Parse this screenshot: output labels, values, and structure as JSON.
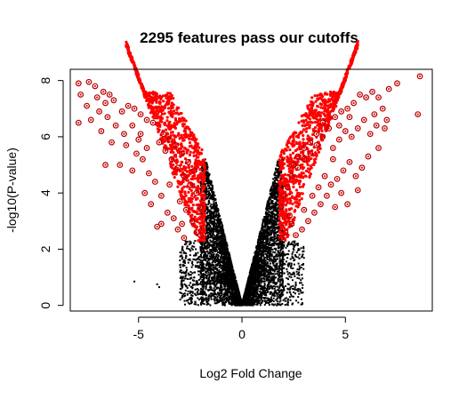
{
  "chart_data": {
    "type": "scatter",
    "title": "2295 features pass our cutoffs",
    "xlabel": "Log2 Fold Change",
    "ylabel": "-log10(P-value)",
    "xlim": [
      -8.3,
      9.2
    ],
    "ylim": [
      -0.2,
      8.4
    ],
    "x_ticks": [
      -5,
      0,
      5
    ],
    "y_ticks": [
      0,
      2,
      4,
      6,
      8
    ],
    "grid": false,
    "legend": "none",
    "cutoff_abs_log2fc": 1.8,
    "cutoff_neg_log10_p": 2.3,
    "colors": {
      "pass": "#ff0000",
      "fail": "#000000",
      "circle": "#b00000"
    },
    "series": [
      {
        "role": "pass",
        "points": [
          [
            -7.9,
            7.9
          ],
          [
            -7.4,
            7.95
          ],
          [
            -7.1,
            7.8
          ],
          [
            -6.7,
            7.6
          ],
          [
            -6.4,
            7.5
          ],
          [
            -6.2,
            7.3
          ],
          [
            -7.0,
            7.4
          ],
          [
            -6.6,
            7.2
          ],
          [
            -7.8,
            7.5
          ],
          [
            -7.5,
            7.1
          ],
          [
            -6.9,
            6.9
          ],
          [
            -7.3,
            6.6
          ],
          [
            -7.9,
            6.5
          ],
          [
            -6.5,
            6.7
          ],
          [
            -6.8,
            6.2
          ],
          [
            -6.1,
            6.4
          ],
          [
            -5.8,
            6.9
          ],
          [
            -5.5,
            7.1
          ],
          [
            -5.2,
            7.0
          ],
          [
            -4.9,
            6.8
          ],
          [
            -4.6,
            6.6
          ],
          [
            -4.3,
            6.5
          ],
          [
            -5.6,
            5.7
          ],
          [
            -5.1,
            5.4
          ],
          [
            -6.3,
            5.8
          ],
          [
            -5.9,
            5.0
          ],
          [
            -6.6,
            5.0
          ],
          [
            -5.3,
            4.8
          ],
          [
            -4.8,
            5.2
          ],
          [
            -4.5,
            4.7
          ],
          [
            -4.2,
            4.4
          ],
          [
            -4.7,
            4.0
          ],
          [
            -4.4,
            3.6
          ],
          [
            -3.9,
            3.9
          ],
          [
            -3.6,
            3.3
          ],
          [
            -3.9,
            2.9
          ],
          [
            -3.3,
            3.1
          ],
          [
            -3.1,
            2.7
          ],
          [
            -2.8,
            2.4
          ],
          [
            -4.1,
            2.8
          ],
          [
            -4.0,
            5.8
          ],
          [
            -3.7,
            5.5
          ],
          [
            -3.4,
            5.2
          ],
          [
            -3.1,
            4.9
          ],
          [
            -2.8,
            4.6
          ],
          [
            -2.5,
            4.3
          ],
          [
            -2.2,
            4.0
          ],
          [
            -2.0,
            3.5
          ],
          [
            -3.8,
            6.1
          ],
          [
            -3.5,
            5.9
          ],
          [
            -3.2,
            5.7
          ],
          [
            -2.9,
            5.4
          ],
          [
            -2.6,
            5.1
          ],
          [
            -2.3,
            4.8
          ],
          [
            -4.9,
            6.1
          ],
          [
            -5.3,
            6.4
          ],
          [
            -5.7,
            6.1
          ],
          [
            -3.0,
            3.7
          ],
          [
            -2.7,
            3.4
          ],
          [
            -2.4,
            3.0
          ],
          [
            -2.2,
            2.6
          ],
          [
            -2.0,
            2.5
          ],
          [
            -2.9,
            2.9
          ],
          [
            -3.5,
            4.3
          ],
          [
            -4.6,
            5.6
          ],
          [
            -5.0,
            5.9
          ],
          [
            8.6,
            8.15
          ],
          [
            7.5,
            7.9
          ],
          [
            7.1,
            7.7
          ],
          [
            8.5,
            6.8
          ],
          [
            6.6,
            7.4
          ],
          [
            6.3,
            7.6
          ],
          [
            6.0,
            7.4
          ],
          [
            5.7,
            7.5
          ],
          [
            5.4,
            7.2
          ],
          [
            5.1,
            7.0
          ],
          [
            4.8,
            6.9
          ],
          [
            4.5,
            6.7
          ],
          [
            6.8,
            7.0
          ],
          [
            6.4,
            6.8
          ],
          [
            6.9,
            6.3
          ],
          [
            6.2,
            6.1
          ],
          [
            5.9,
            6.6
          ],
          [
            5.6,
            6.3
          ],
          [
            5.3,
            6.0
          ],
          [
            5.0,
            6.2
          ],
          [
            4.7,
            5.9
          ],
          [
            4.4,
            5.6
          ],
          [
            6.6,
            5.6
          ],
          [
            6.1,
            5.3
          ],
          [
            5.8,
            4.9
          ],
          [
            5.5,
            4.6
          ],
          [
            5.2,
            5.1
          ],
          [
            4.9,
            4.8
          ],
          [
            4.6,
            4.5
          ],
          [
            4.3,
            4.3
          ],
          [
            5.6,
            4.1
          ],
          [
            5.1,
            3.6
          ],
          [
            4.8,
            4.0
          ],
          [
            4.1,
            3.9
          ],
          [
            3.8,
            3.6
          ],
          [
            3.5,
            3.3
          ],
          [
            3.2,
            3.0
          ],
          [
            2.9,
            2.7
          ],
          [
            2.6,
            2.5
          ],
          [
            2.3,
            3.2
          ],
          [
            2.1,
            2.6
          ],
          [
            1.9,
            2.4
          ],
          [
            3.9,
            6.0
          ],
          [
            3.6,
            5.7
          ],
          [
            3.3,
            5.4
          ],
          [
            3.0,
            5.2
          ],
          [
            2.7,
            4.9
          ],
          [
            2.4,
            4.6
          ],
          [
            2.2,
            4.2
          ],
          [
            2.0,
            3.9
          ],
          [
            1.9,
            3.5
          ],
          [
            4.2,
            6.3
          ],
          [
            3.9,
            6.5
          ],
          [
            3.6,
            6.1
          ],
          [
            3.3,
            5.8
          ],
          [
            3.0,
            5.6
          ],
          [
            2.7,
            5.3
          ],
          [
            2.5,
            5.0
          ],
          [
            4.0,
            4.6
          ],
          [
            3.7,
            4.2
          ],
          [
            3.4,
            3.9
          ],
          [
            4.4,
            5.2
          ],
          [
            4.7,
            6.4
          ],
          [
            5.2,
            6.7
          ],
          [
            6.5,
            6.4
          ],
          [
            7.0,
            6.6
          ],
          [
            4.5,
            3.5
          ],
          [
            3.0,
            3.4
          ],
          [
            2.4,
            2.9
          ]
        ]
      },
      {
        "role": "fail",
        "points": [
          [
            -5.2,
            0.85
          ],
          [
            -4.1,
            0.75
          ],
          [
            -4.0,
            0.65
          ],
          [
            -2.1,
            0.55
          ],
          [
            -2.6,
            0.5
          ],
          [
            -1.9,
            0.7
          ],
          [
            -3.0,
            1.6
          ],
          [
            -2.7,
            1.75
          ],
          [
            -2.4,
            1.55
          ],
          [
            1.8,
            1.0
          ],
          [
            2.2,
            1.2
          ],
          [
            1.5,
            0.9
          ]
        ]
      }
    ]
  }
}
